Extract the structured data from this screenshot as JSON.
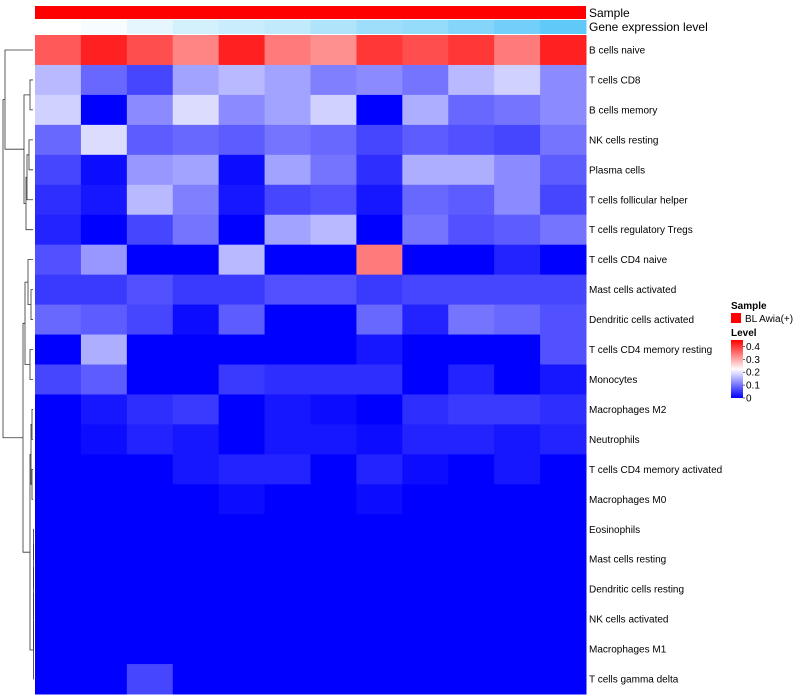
{
  "chart_data": {
    "type": "heatmap",
    "title": "",
    "annotations": {
      "sample_label": "Sample",
      "gene_expression_label": "Gene expression level",
      "sample_color": "#ff0000",
      "gene_expression_values": [
        0.0,
        0.05,
        0.15,
        0.25,
        0.3,
        0.35,
        0.45,
        0.55,
        0.6,
        0.7,
        0.8,
        0.9
      ]
    },
    "rows": [
      "B cells naive",
      "T cells CD8",
      "B cells memory",
      "NK cells resting",
      "Plasma cells",
      "T cells follicular helper",
      "T cells regulatory  Tregs",
      "T cells CD4 naive",
      "Mast cells activated",
      "Dendritic cells activated",
      "T cells CD4 memory resting",
      "Monocytes",
      "Macrophages M2",
      "Neutrophils",
      "T cells CD4 memory activated",
      "Macrophages M0",
      "Eosinophils",
      "Mast cells resting",
      "Dendritic cells resting",
      "NK cells activated",
      "Macrophages M1",
      "T cells gamma delta"
    ],
    "values": [
      [
        0.37,
        0.42,
        0.38,
        0.33,
        0.42,
        0.34,
        0.32,
        0.4,
        0.38,
        0.4,
        0.34,
        0.42
      ],
      [
        0.16,
        0.09,
        0.06,
        0.14,
        0.16,
        0.14,
        0.11,
        0.12,
        0.1,
        0.16,
        0.18,
        0.12
      ],
      [
        0.18,
        0.0,
        0.12,
        0.19,
        0.12,
        0.14,
        0.18,
        0.0,
        0.15,
        0.09,
        0.1,
        0.12
      ],
      [
        0.09,
        0.19,
        0.08,
        0.09,
        0.08,
        0.1,
        0.09,
        0.06,
        0.08,
        0.07,
        0.06,
        0.1
      ],
      [
        0.06,
        0.01,
        0.13,
        0.14,
        0.01,
        0.14,
        0.1,
        0.04,
        0.15,
        0.15,
        0.12,
        0.08
      ],
      [
        0.04,
        0.02,
        0.16,
        0.11,
        0.02,
        0.06,
        0.07,
        0.02,
        0.09,
        0.08,
        0.12,
        0.06
      ],
      [
        0.03,
        0.0,
        0.06,
        0.1,
        0.0,
        0.14,
        0.16,
        0.0,
        0.1,
        0.07,
        0.08,
        0.1
      ],
      [
        0.07,
        0.13,
        0.0,
        0.0,
        0.16,
        0.0,
        0.0,
        0.34,
        0.0,
        0.0,
        0.03,
        0.0
      ],
      [
        0.05,
        0.05,
        0.07,
        0.05,
        0.05,
        0.07,
        0.07,
        0.05,
        0.06,
        0.06,
        0.06,
        0.06
      ],
      [
        0.09,
        0.08,
        0.06,
        0.01,
        0.08,
        0.0,
        0.0,
        0.09,
        0.03,
        0.1,
        0.09,
        0.07
      ],
      [
        0.0,
        0.15,
        0.0,
        0.0,
        0.0,
        0.0,
        0.0,
        0.02,
        0.0,
        0.0,
        0.0,
        0.07
      ],
      [
        0.06,
        0.08,
        0.0,
        0.0,
        0.05,
        0.04,
        0.04,
        0.04,
        0.0,
        0.03,
        0.0,
        0.02
      ],
      [
        0.0,
        0.02,
        0.04,
        0.05,
        0.0,
        0.02,
        0.01,
        0.0,
        0.04,
        0.05,
        0.05,
        0.04
      ],
      [
        0.0,
        0.01,
        0.03,
        0.02,
        0.0,
        0.02,
        0.02,
        0.01,
        0.03,
        0.03,
        0.02,
        0.03
      ],
      [
        0.0,
        0.0,
        0.0,
        0.02,
        0.03,
        0.03,
        0.0,
        0.03,
        0.01,
        0.0,
        0.02,
        0.0
      ],
      [
        0.0,
        0.0,
        0.0,
        0.0,
        0.01,
        0.0,
        0.0,
        0.01,
        0.0,
        0.0,
        0.0,
        0.0
      ],
      [
        0.0,
        0.0,
        0.0,
        0.0,
        0.0,
        0.0,
        0.0,
        0.0,
        0.0,
        0.0,
        0.0,
        0.0
      ],
      [
        0.0,
        0.0,
        0.0,
        0.0,
        0.0,
        0.0,
        0.0,
        0.0,
        0.0,
        0.0,
        0.0,
        0.0
      ],
      [
        0.0,
        0.0,
        0.0,
        0.0,
        0.0,
        0.0,
        0.0,
        0.0,
        0.0,
        0.0,
        0.0,
        0.0
      ],
      [
        0.0,
        0.0,
        0.0,
        0.0,
        0.0,
        0.0,
        0.0,
        0.0,
        0.0,
        0.0,
        0.0,
        0.0
      ],
      [
        0.0,
        0.0,
        0.0,
        0.0,
        0.0,
        0.0,
        0.0,
        0.0,
        0.0,
        0.0,
        0.0,
        0.0
      ],
      [
        0.0,
        0.0,
        0.06,
        0.0,
        0.0,
        0.0,
        0.0,
        0.0,
        0.0,
        0.0,
        0.0,
        0.0
      ]
    ],
    "color_scale": {
      "low": "#0000ff",
      "mid": "#ffffff",
      "high": "#ff0000",
      "min": 0,
      "mid_value": 0.22,
      "max": 0.45
    },
    "legend": {
      "sample_title": "Sample",
      "sample_entry": "BL Awia(+)",
      "level_title": "Level",
      "level_ticks": [
        "0.4",
        "0.3",
        "0.2",
        "0.1",
        "0"
      ],
      "level_tick_values": [
        0.4,
        0.3,
        0.2,
        0.1,
        0
      ],
      "placement": "right"
    }
  }
}
